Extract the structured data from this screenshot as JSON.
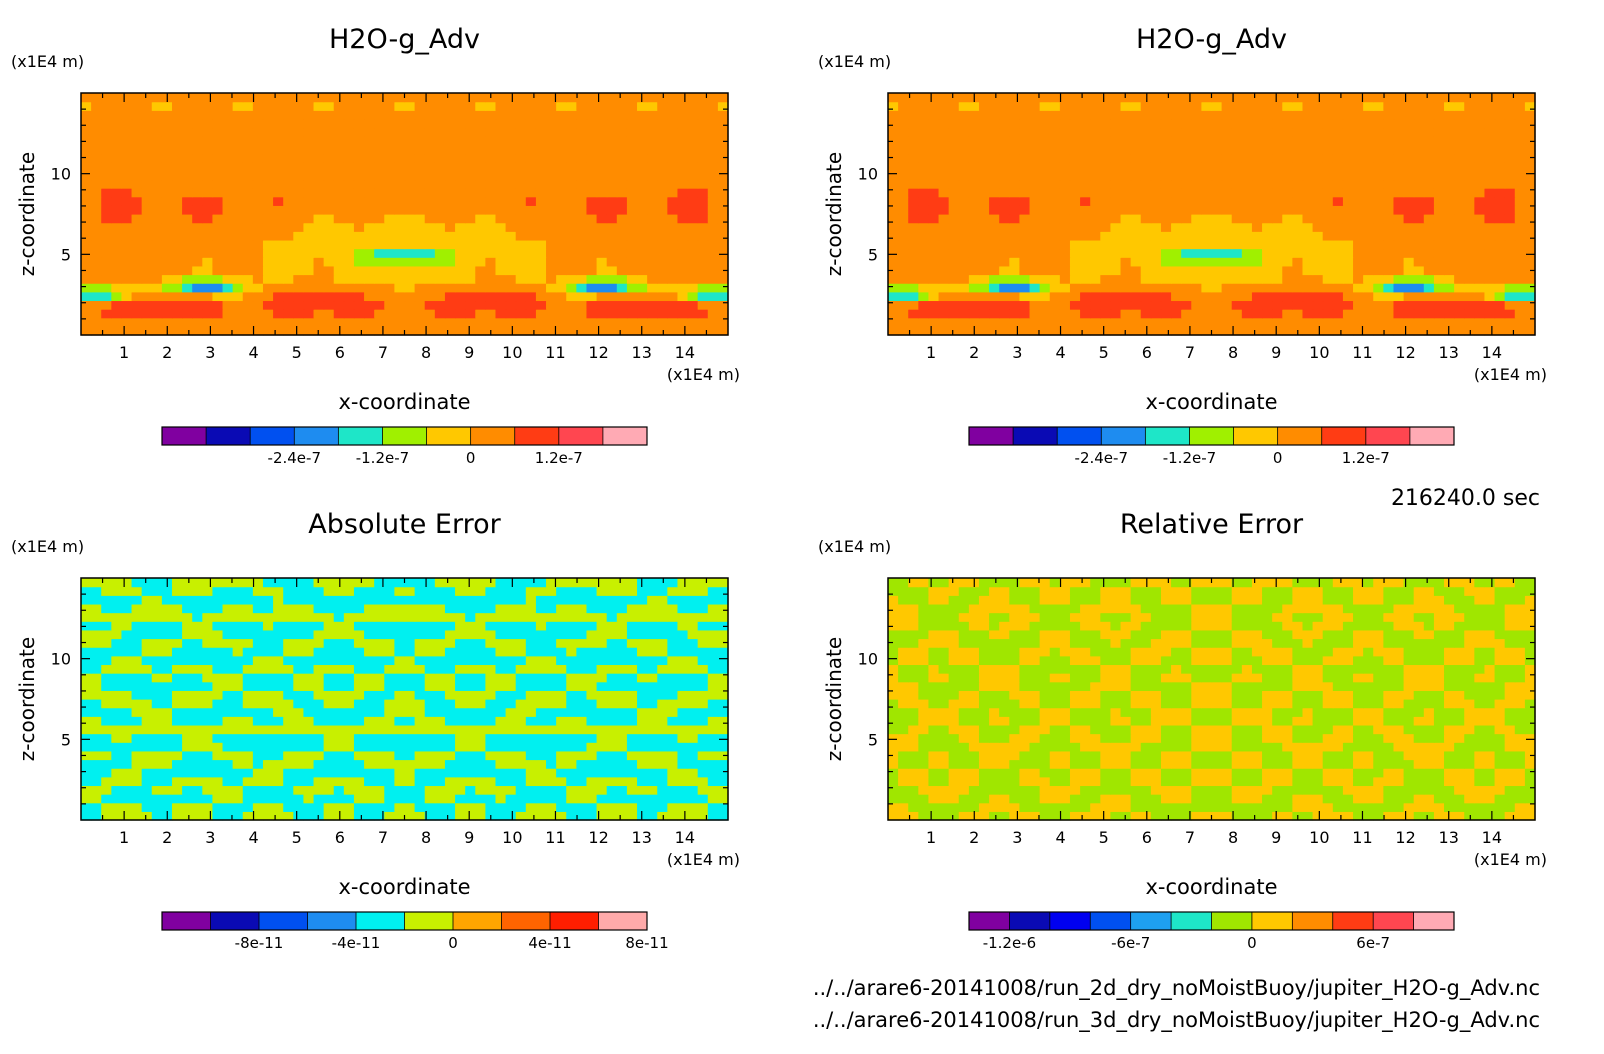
{
  "chart_data": [
    {
      "type": "heatmap",
      "title": "H2O-g_Adv",
      "xlabel": "x-coordinate",
      "ylabel": "z-coordinate",
      "x_unit": "(x1E4 m)",
      "y_unit": "(x1E4 m)",
      "x_ticks": [
        "1",
        "2",
        "3",
        "4",
        "5",
        "6",
        "7",
        "8",
        "9",
        "10",
        "11",
        "12",
        "13",
        "14"
      ],
      "y_ticks": [
        "5",
        "10"
      ],
      "xlim": [
        0,
        15
      ],
      "ylim": [
        0,
        15
      ],
      "colorbar": {
        "colors": [
          "#8000a0",
          "#0a0ab4",
          "#0050f0",
          "#1e8cf0",
          "#1ee6c8",
          "#a0f000",
          "#ffc800",
          "#ff8c00",
          "#ff3c14",
          "#ff4650",
          "#ffaab4"
        ],
        "tick_labels": [
          "-2.4e-7",
          "-1.2e-7",
          "0",
          "1.2e-7"
        ],
        "tick_positions": [
          2,
          4,
          6,
          8
        ]
      },
      "pattern": "original"
    },
    {
      "type": "heatmap",
      "title": "H2O-g_Adv",
      "xlabel": "x-coordinate",
      "ylabel": "z-coordinate",
      "x_unit": "(x1E4 m)",
      "y_unit": "(x1E4 m)",
      "x_ticks": [
        "1",
        "2",
        "3",
        "4",
        "5",
        "6",
        "7",
        "8",
        "9",
        "10",
        "11",
        "12",
        "13",
        "14"
      ],
      "y_ticks": [
        "5",
        "10"
      ],
      "xlim": [
        0,
        15
      ],
      "ylim": [
        0,
        15
      ],
      "colorbar": {
        "colors": [
          "#8000a0",
          "#0a0ab4",
          "#0050f0",
          "#1e8cf0",
          "#1ee6c8",
          "#a0f000",
          "#ffc800",
          "#ff8c00",
          "#ff3c14",
          "#ff4650",
          "#ffaab4"
        ],
        "tick_labels": [
          "-2.4e-7",
          "-1.2e-7",
          "0",
          "1.2e-7"
        ],
        "tick_positions": [
          2,
          4,
          6,
          8
        ]
      },
      "pattern": "original"
    },
    {
      "type": "heatmap",
      "title": "Absolute Error",
      "xlabel": "x-coordinate",
      "ylabel": "z-coordinate",
      "x_unit": "(x1E4 m)",
      "y_unit": "(x1E4 m)",
      "x_ticks": [
        "1",
        "2",
        "3",
        "4",
        "5",
        "6",
        "7",
        "8",
        "9",
        "10",
        "11",
        "12",
        "13",
        "14"
      ],
      "y_ticks": [
        "5",
        "10"
      ],
      "xlim": [
        0,
        15
      ],
      "ylim": [
        0,
        15
      ],
      "colorbar": {
        "colors": [
          "#8000a0",
          "#0a0ab4",
          "#0050f0",
          "#1e8cf0",
          "#00f0f0",
          "#c8f000",
          "#ffa500",
          "#ff6400",
          "#ff1e00",
          "#ffaaaa"
        ],
        "tick_labels": [
          "-8e-11",
          "-4e-11",
          "0",
          "4e-11",
          "8e-11"
        ],
        "tick_positions": [
          1,
          3,
          5,
          7,
          9
        ]
      },
      "pattern": "abs"
    },
    {
      "type": "heatmap",
      "title": "Relative Error",
      "xlabel": "x-coordinate",
      "ylabel": "z-coordinate",
      "x_unit": "(x1E4 m)",
      "y_unit": "(x1E4 m)",
      "x_ticks": [
        "1",
        "2",
        "3",
        "4",
        "5",
        "6",
        "7",
        "8",
        "9",
        "10",
        "11",
        "12",
        "13",
        "14"
      ],
      "y_ticks": [
        "5",
        "10"
      ],
      "xlim": [
        0,
        15
      ],
      "ylim": [
        0,
        15
      ],
      "colorbar": {
        "colors": [
          "#8000a0",
          "#0a0ab4",
          "#0000f0",
          "#0050f0",
          "#1ea0f0",
          "#1ee6c8",
          "#a0e600",
          "#ffc800",
          "#ff8c00",
          "#ff3c14",
          "#ff4650",
          "#ffaab4"
        ],
        "tick_labels": [
          "-1.2e-6",
          "-6e-7",
          "0",
          "6e-7"
        ],
        "tick_positions": [
          0,
          3,
          6,
          9
        ]
      },
      "pattern": "rel"
    }
  ],
  "time_label": "216240.0 sec",
  "file_lines": [
    "../../arare6-20141008/run_2d_dry_noMoistBuoy/jupiter_H2O-g_Adv.nc",
    "../../arare6-20141008/run_3d_dry_noMoistBuoy/jupiter_H2O-g_Adv.nc"
  ]
}
